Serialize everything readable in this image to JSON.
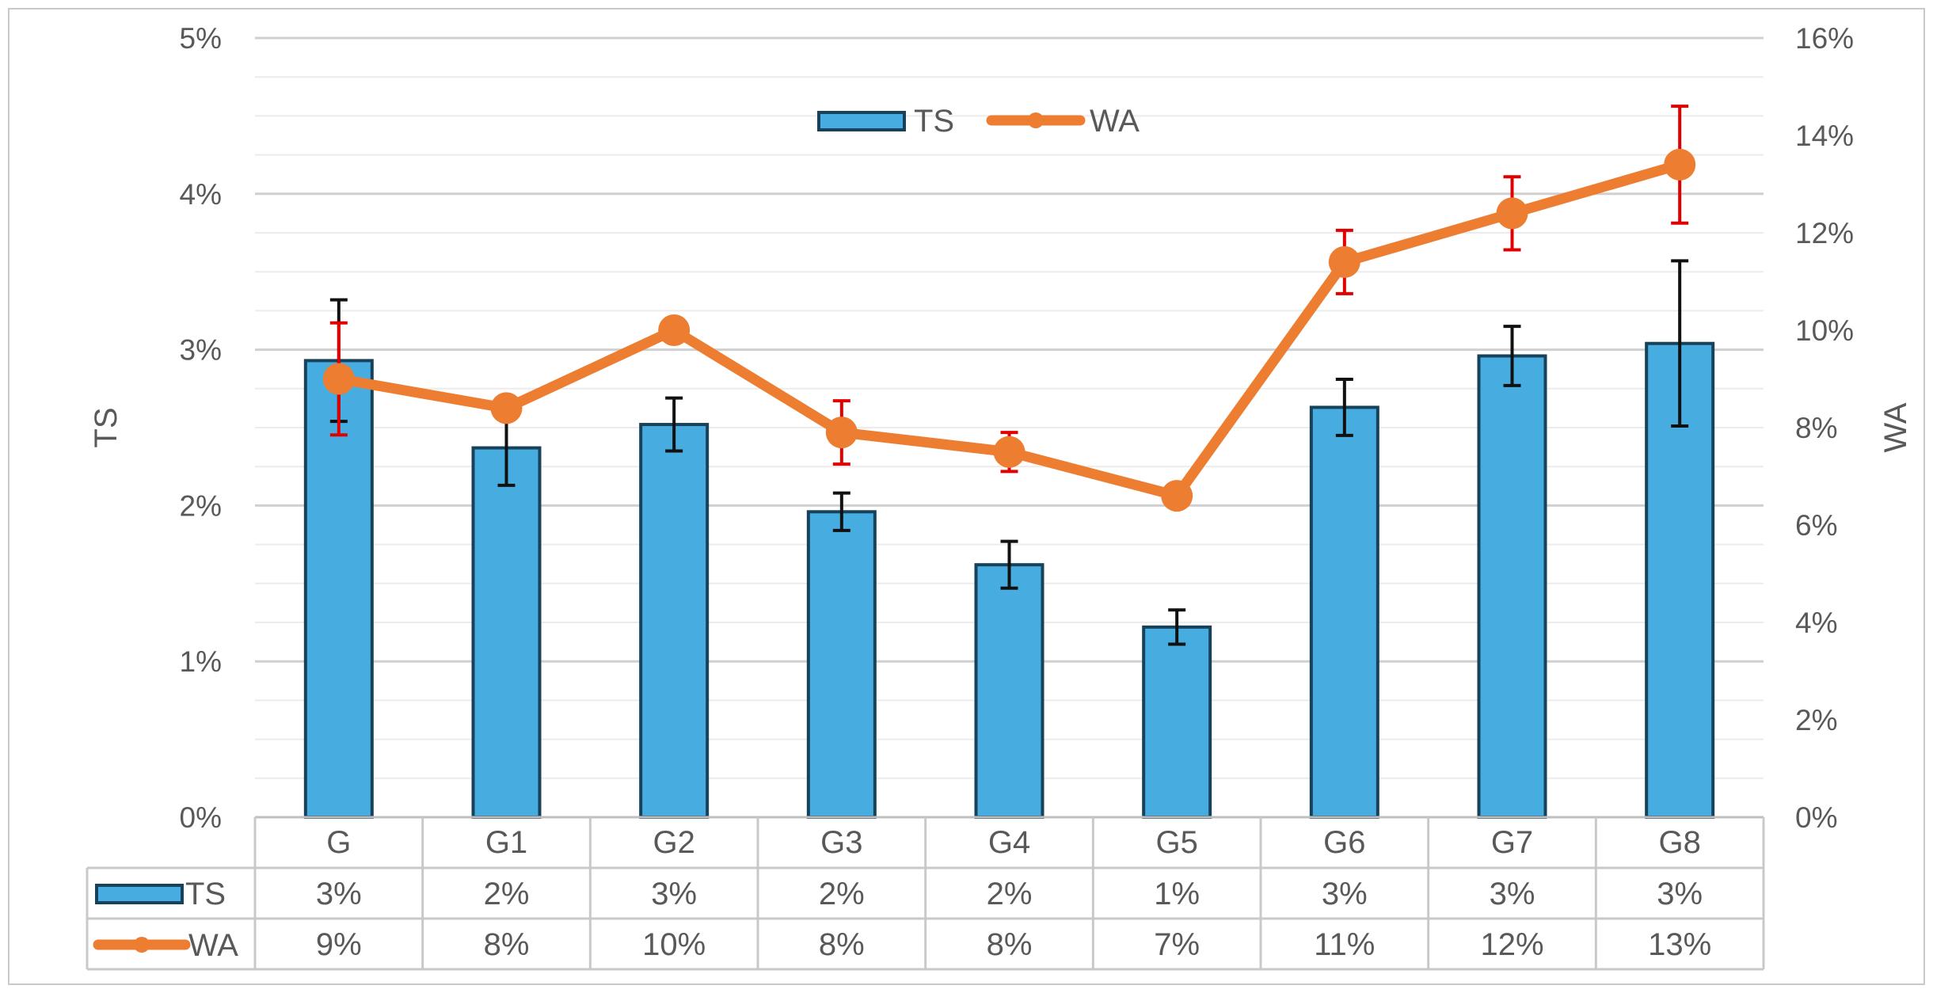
{
  "chart_data": {
    "type": "bar",
    "title": "",
    "categories": [
      "G",
      "G1",
      "G2",
      "G3",
      "G4",
      "G5",
      "G6",
      "G7",
      "G8"
    ],
    "xlabel": "",
    "ylabel": "TS",
    "y2label": "WA",
    "ylim": [
      0,
      5
    ],
    "y2lim": [
      0,
      16
    ],
    "y_ticks": [
      "0%",
      "1%",
      "2%",
      "3%",
      "4%",
      "5%"
    ],
    "y2_ticks": [
      "0%",
      "2%",
      "4%",
      "6%",
      "8%",
      "10%",
      "12%",
      "14%",
      "16%"
    ],
    "y_tick_values": [
      0,
      1,
      2,
      3,
      4,
      5
    ],
    "y2_tick_values": [
      0,
      2,
      4,
      6,
      8,
      10,
      12,
      14,
      16
    ],
    "grid": true,
    "legend_position": "top-center",
    "series": [
      {
        "name": "TS",
        "kind": "bar",
        "axis": "left",
        "color": "#47ade0",
        "edge_color": "#17425a",
        "values": [
          2.93,
          2.37,
          2.52,
          1.96,
          1.62,
          1.22,
          2.63,
          2.96,
          3.04
        ],
        "errors": [
          0.39,
          0.24,
          0.17,
          0.12,
          0.15,
          0.11,
          0.18,
          0.19,
          0.53
        ],
        "error_color": "#111111",
        "table_labels": [
          "3%",
          "2%",
          "3%",
          "2%",
          "2%",
          "1%",
          "3%",
          "3%",
          "3%"
        ]
      },
      {
        "name": "WA",
        "kind": "line",
        "axis": "right",
        "color": "#ed7d31",
        "values": [
          9.0,
          8.4,
          10.0,
          7.9,
          7.5,
          6.6,
          11.4,
          12.4,
          13.4
        ],
        "errors": [
          1.15,
          0.0,
          0.0,
          0.65,
          0.4,
          0.0,
          0.65,
          0.75,
          1.2
        ],
        "error_color": "#e00000",
        "table_labels": [
          "9%",
          "8%",
          "10%",
          "8%",
          "8%",
          "7%",
          "11%",
          "12%",
          "13%"
        ]
      }
    ]
  }
}
